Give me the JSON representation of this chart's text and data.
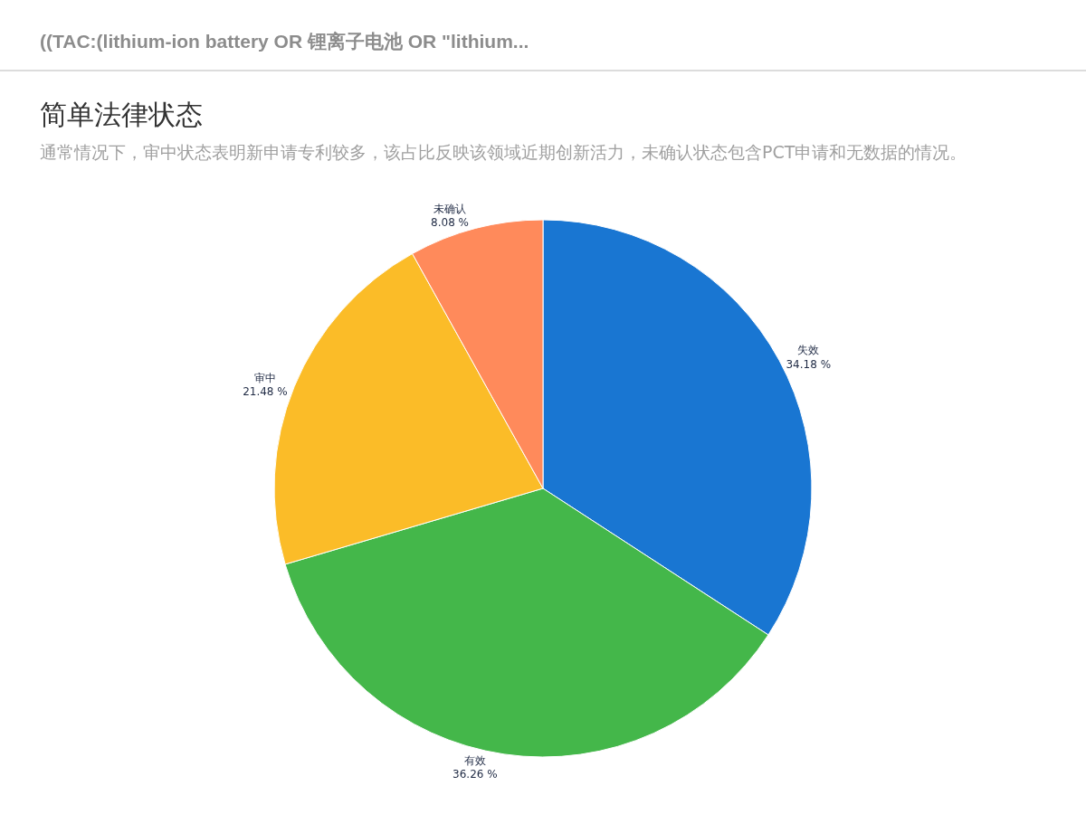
{
  "chart_data": {
    "type": "pie",
    "title": "简单法律状态",
    "subtitle": "通常情况下，审中状态表明新申请专利较多，该占比反映该领域近期创新活力，未确认状态包含PCT申请和无数据的情况。",
    "annotations": [
      "((TAC:(lithium-ion battery OR 锂离子电池 OR \"lithium..."
    ],
    "categories": [
      "失效",
      "有效",
      "审中",
      "未确认"
    ],
    "values": [
      34.18,
      36.26,
      21.48,
      8.08
    ],
    "value_labels": [
      "34.18 %",
      "36.26 %",
      "21.48 %",
      "8.08 %"
    ],
    "colors": [
      "#1976d2",
      "#44b74a",
      "#fbbc28",
      "#ff8a5b"
    ],
    "legend": false
  }
}
